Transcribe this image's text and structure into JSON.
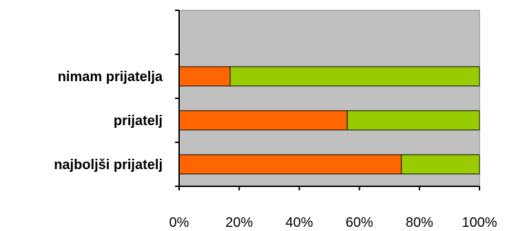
{
  "chart_data": {
    "type": "bar",
    "orientation": "horizontal",
    "stacked": true,
    "percent_scale": true,
    "categories": [
      "nimam prijatelja",
      "prijatelj",
      "najboljši prijatelj"
    ],
    "series": [
      {
        "values": [
          17,
          56,
          74
        ],
        "color": "#ff6600"
      },
      {
        "values": [
          83,
          44,
          26
        ],
        "color": "#99cc00"
      }
    ],
    "xlim": [
      0,
      100
    ],
    "x_ticks": [
      "0%",
      "20%",
      "40%",
      "60%",
      "80%",
      "100%"
    ],
    "plot_background": "#c0c0c0",
    "grid": false,
    "legend": false,
    "empty_category_slots_above": 1
  }
}
